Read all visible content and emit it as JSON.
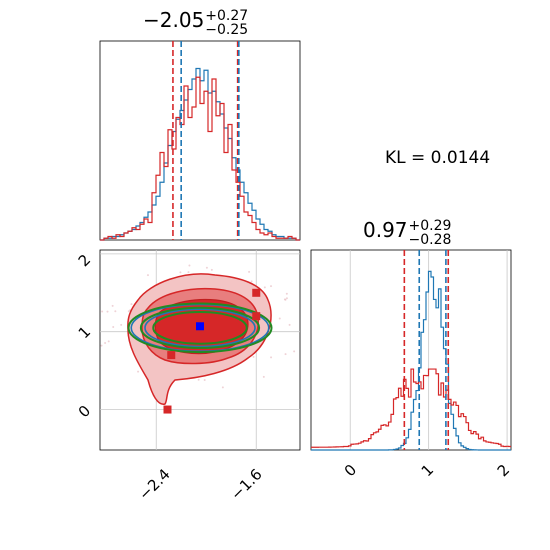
{
  "annotation": {
    "kl": "KL = 0.0144"
  },
  "panels": {
    "top_left": {
      "title_main": "−2.05",
      "title_sup": "+0.27",
      "title_sub": "−0.25"
    },
    "bottom_right": {
      "title_main": "0.97",
      "title_sup": "+0.29",
      "title_sub": "−0.28"
    }
  },
  "colors": {
    "blue": "#1f77b4",
    "red": "#d62728",
    "green": "#228b22",
    "grid": "#c8c8c8"
  },
  "chart_data": [
    {
      "type": "step-histogram",
      "panel": "top_left",
      "xlim": [
        -2.95,
        -1.25
      ],
      "ylim": [
        0,
        1
      ],
      "bin_start": -2.95,
      "bin_width": 0.034,
      "series": [
        {
          "color": "blue",
          "counts": [
            0,
            0.01,
            0.01,
            0.02,
            0.02,
            0.03,
            0.04,
            0.05,
            0.06,
            0.08,
            0.1,
            0.13,
            0.16,
            0.2,
            0.25,
            0.33,
            0.44,
            0.54,
            0.62,
            0.69,
            0.74,
            0.8,
            0.86,
            0.92,
            0.98,
            0.91,
            0.97,
            0.84,
            0.85,
            0.79,
            0.72,
            0.64,
            0.58,
            0.47,
            0.4,
            0.33,
            0.27,
            0.21,
            0.17,
            0.12,
            0.09,
            0.06,
            0.05,
            0.03,
            0.02,
            0.02,
            0.01,
            0.01,
            0.01,
            0
          ]
        },
        {
          "color": "red",
          "counts": [
            0,
            0.01,
            0.02,
            0.01,
            0.03,
            0.02,
            0.04,
            0.05,
            0.07,
            0.06,
            0.09,
            0.12,
            0.1,
            0.27,
            0.37,
            0.5,
            0.42,
            0.63,
            0.52,
            0.7,
            0.66,
            0.88,
            0.7,
            0.76,
            0.93,
            0.78,
            0.85,
            0.62,
            0.92,
            0.71,
            0.78,
            0.5,
            0.66,
            0.4,
            0.33,
            0.25,
            0.16,
            0.14,
            0.1,
            0.06,
            0.04,
            0.03,
            0.04,
            0.02,
            0.01,
            0.01,
            0.01,
            0.02,
            0.01,
            0
          ]
        }
      ],
      "quantile_lines": {
        "red": [
          -2.33,
          -1.78
        ],
        "blue": [
          -2.26,
          -1.77
        ]
      }
    },
    {
      "type": "contour",
      "panel": "bottom_left",
      "xlim": [
        -2.85,
        -1.25
      ],
      "ylim": [
        -0.52,
        2.05
      ],
      "xticks": [
        "−2.4",
        "−1.6"
      ],
      "yticks": [
        "0",
        "1",
        "2"
      ],
      "contour_fills": [
        "#f3c4c4",
        "#e87e7e",
        "#d62728"
      ],
      "ellipses": [
        {
          "color": "blue",
          "center": [
            -2.05,
            1.05
          ],
          "radius": [
            0.55,
            0.3
          ]
        },
        {
          "color": "green",
          "center": [
            -2.05,
            1.05
          ],
          "radius": [
            0.55,
            0.3
          ]
        }
      ],
      "markers_red": [
        [
          -1.6,
          1.5
        ],
        [
          -2.28,
          0.7
        ],
        [
          -2.31,
          0.0
        ],
        [
          -1.6,
          1.2
        ]
      ],
      "marker_blue": [
        -2.05,
        1.07
      ]
    },
    {
      "type": "step-histogram",
      "panel": "bottom_right",
      "xlim": [
        -0.5,
        2.05
      ],
      "ylim": [
        0,
        1
      ],
      "xticks": [
        "0",
        "1",
        "2"
      ],
      "quantile_lines": {
        "red": [
          0.69,
          1.25
        ],
        "blue": [
          0.88,
          1.22
        ]
      }
    }
  ]
}
